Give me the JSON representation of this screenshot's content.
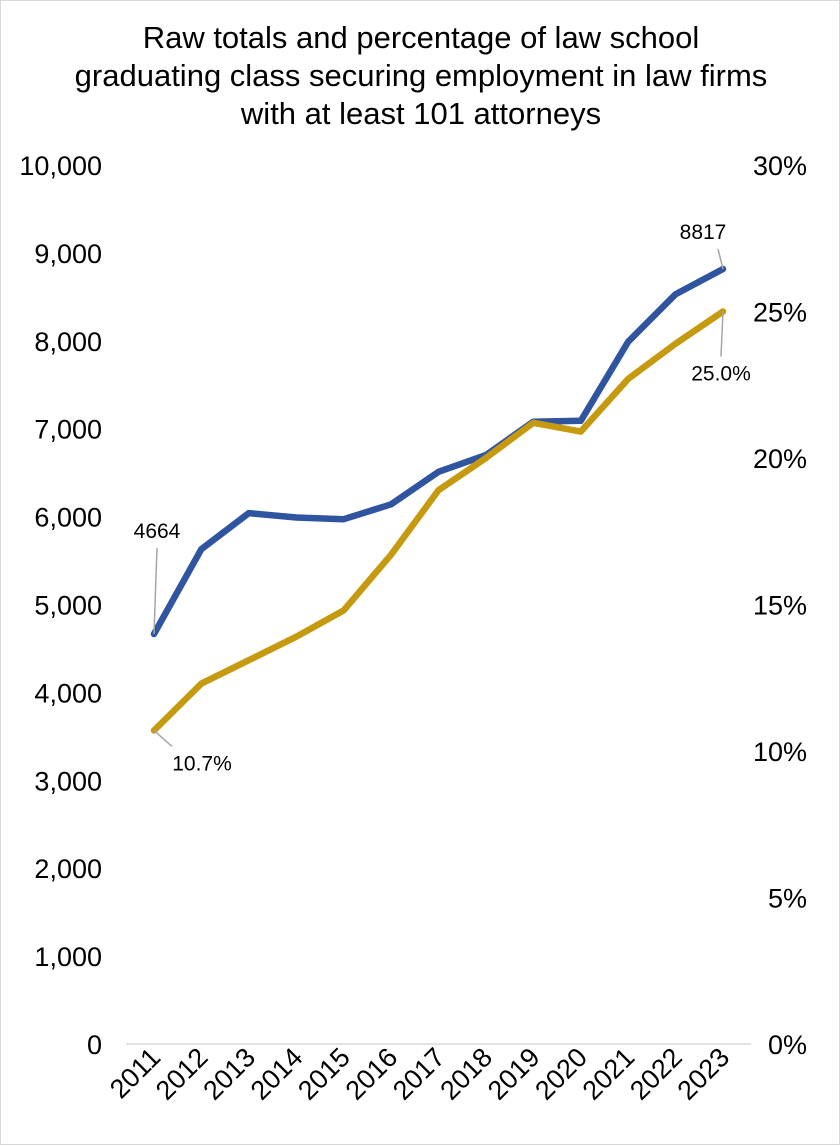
{
  "chart_data": {
    "type": "line",
    "title": "Raw totals and percentage of law school graduating class securing employment in law firms with at least 101 attorneys",
    "categories": [
      "2011",
      "2012",
      "2013",
      "2014",
      "2015",
      "2016",
      "2017",
      "2018",
      "2019",
      "2020",
      "2021",
      "2022",
      "2023"
    ],
    "y_left": {
      "range": [
        0,
        10000
      ],
      "ticks": [
        0,
        1000,
        2000,
        3000,
        4000,
        5000,
        6000,
        7000,
        8000,
        9000,
        10000
      ],
      "tick_labels": [
        "0",
        "1,000",
        "2,000",
        "3,000",
        "4,000",
        "5,000",
        "6,000",
        "7,000",
        "8,000",
        "9,000",
        "10,000"
      ]
    },
    "y_right": {
      "range": [
        0,
        0.3
      ],
      "ticks": [
        0,
        0.05,
        0.1,
        0.15,
        0.2,
        0.25,
        0.3
      ],
      "tick_labels": [
        "0%",
        "5%",
        "10%",
        "15%",
        "20%",
        "25%",
        "30%"
      ]
    },
    "grid": false,
    "legend": "none",
    "series": [
      {
        "axis": "left",
        "color": "#2f55a0",
        "values": [
          4664,
          5630,
          6040,
          5990,
          5970,
          6140,
          6510,
          6700,
          7080,
          7090,
          7990,
          8530,
          8817
        ],
        "labels": [
          {
            "index": 0,
            "text": "4664"
          },
          {
            "index": 12,
            "text": "8817"
          }
        ]
      },
      {
        "axis": "right",
        "color": "#c59a0f",
        "values": [
          0.107,
          0.123,
          0.131,
          0.139,
          0.148,
          0.167,
          0.189,
          0.2,
          0.212,
          0.209,
          0.227,
          0.239,
          0.25
        ],
        "labels": [
          {
            "index": 0,
            "text": "10.7%"
          },
          {
            "index": 12,
            "text": "25.0%"
          }
        ]
      }
    ]
  }
}
